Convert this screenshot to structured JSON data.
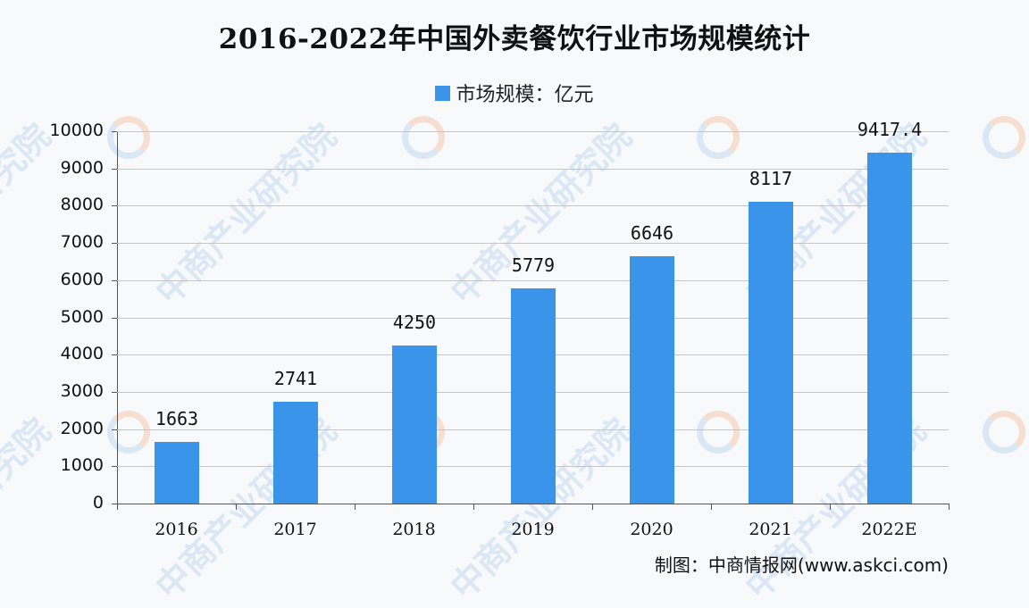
{
  "title": "2016-2022年中国外卖餐饮行业市场规模统计",
  "legend": {
    "label": "市场规模：亿元",
    "color": "#3a95ea"
  },
  "source": "制图：中商情报网(www.askci.com)",
  "watermark": "中商产业研究院",
  "chart_data": {
    "type": "bar",
    "title": "2016-2022年中国外卖餐饮行业市场规模统计",
    "categories": [
      "2016",
      "2017",
      "2018",
      "2019",
      "2020",
      "2021",
      "2022E"
    ],
    "series": [
      {
        "name": "市场规模：亿元",
        "values": [
          1663,
          2741,
          4250,
          5779,
          6646,
          8117,
          9417.4
        ],
        "color": "#3a95ea"
      }
    ],
    "value_labels": [
      "1663",
      "2741",
      "4250",
      "5779",
      "6646",
      "8117",
      "9417.4"
    ],
    "xlabel": "",
    "ylabel": "",
    "ylim": [
      0,
      10000
    ],
    "yticks": [
      "0",
      "1000",
      "2000",
      "3000",
      "4000",
      "5000",
      "6000",
      "7000",
      "8000",
      "9000",
      "10000"
    ],
    "grid": true,
    "legend_position": "top"
  }
}
